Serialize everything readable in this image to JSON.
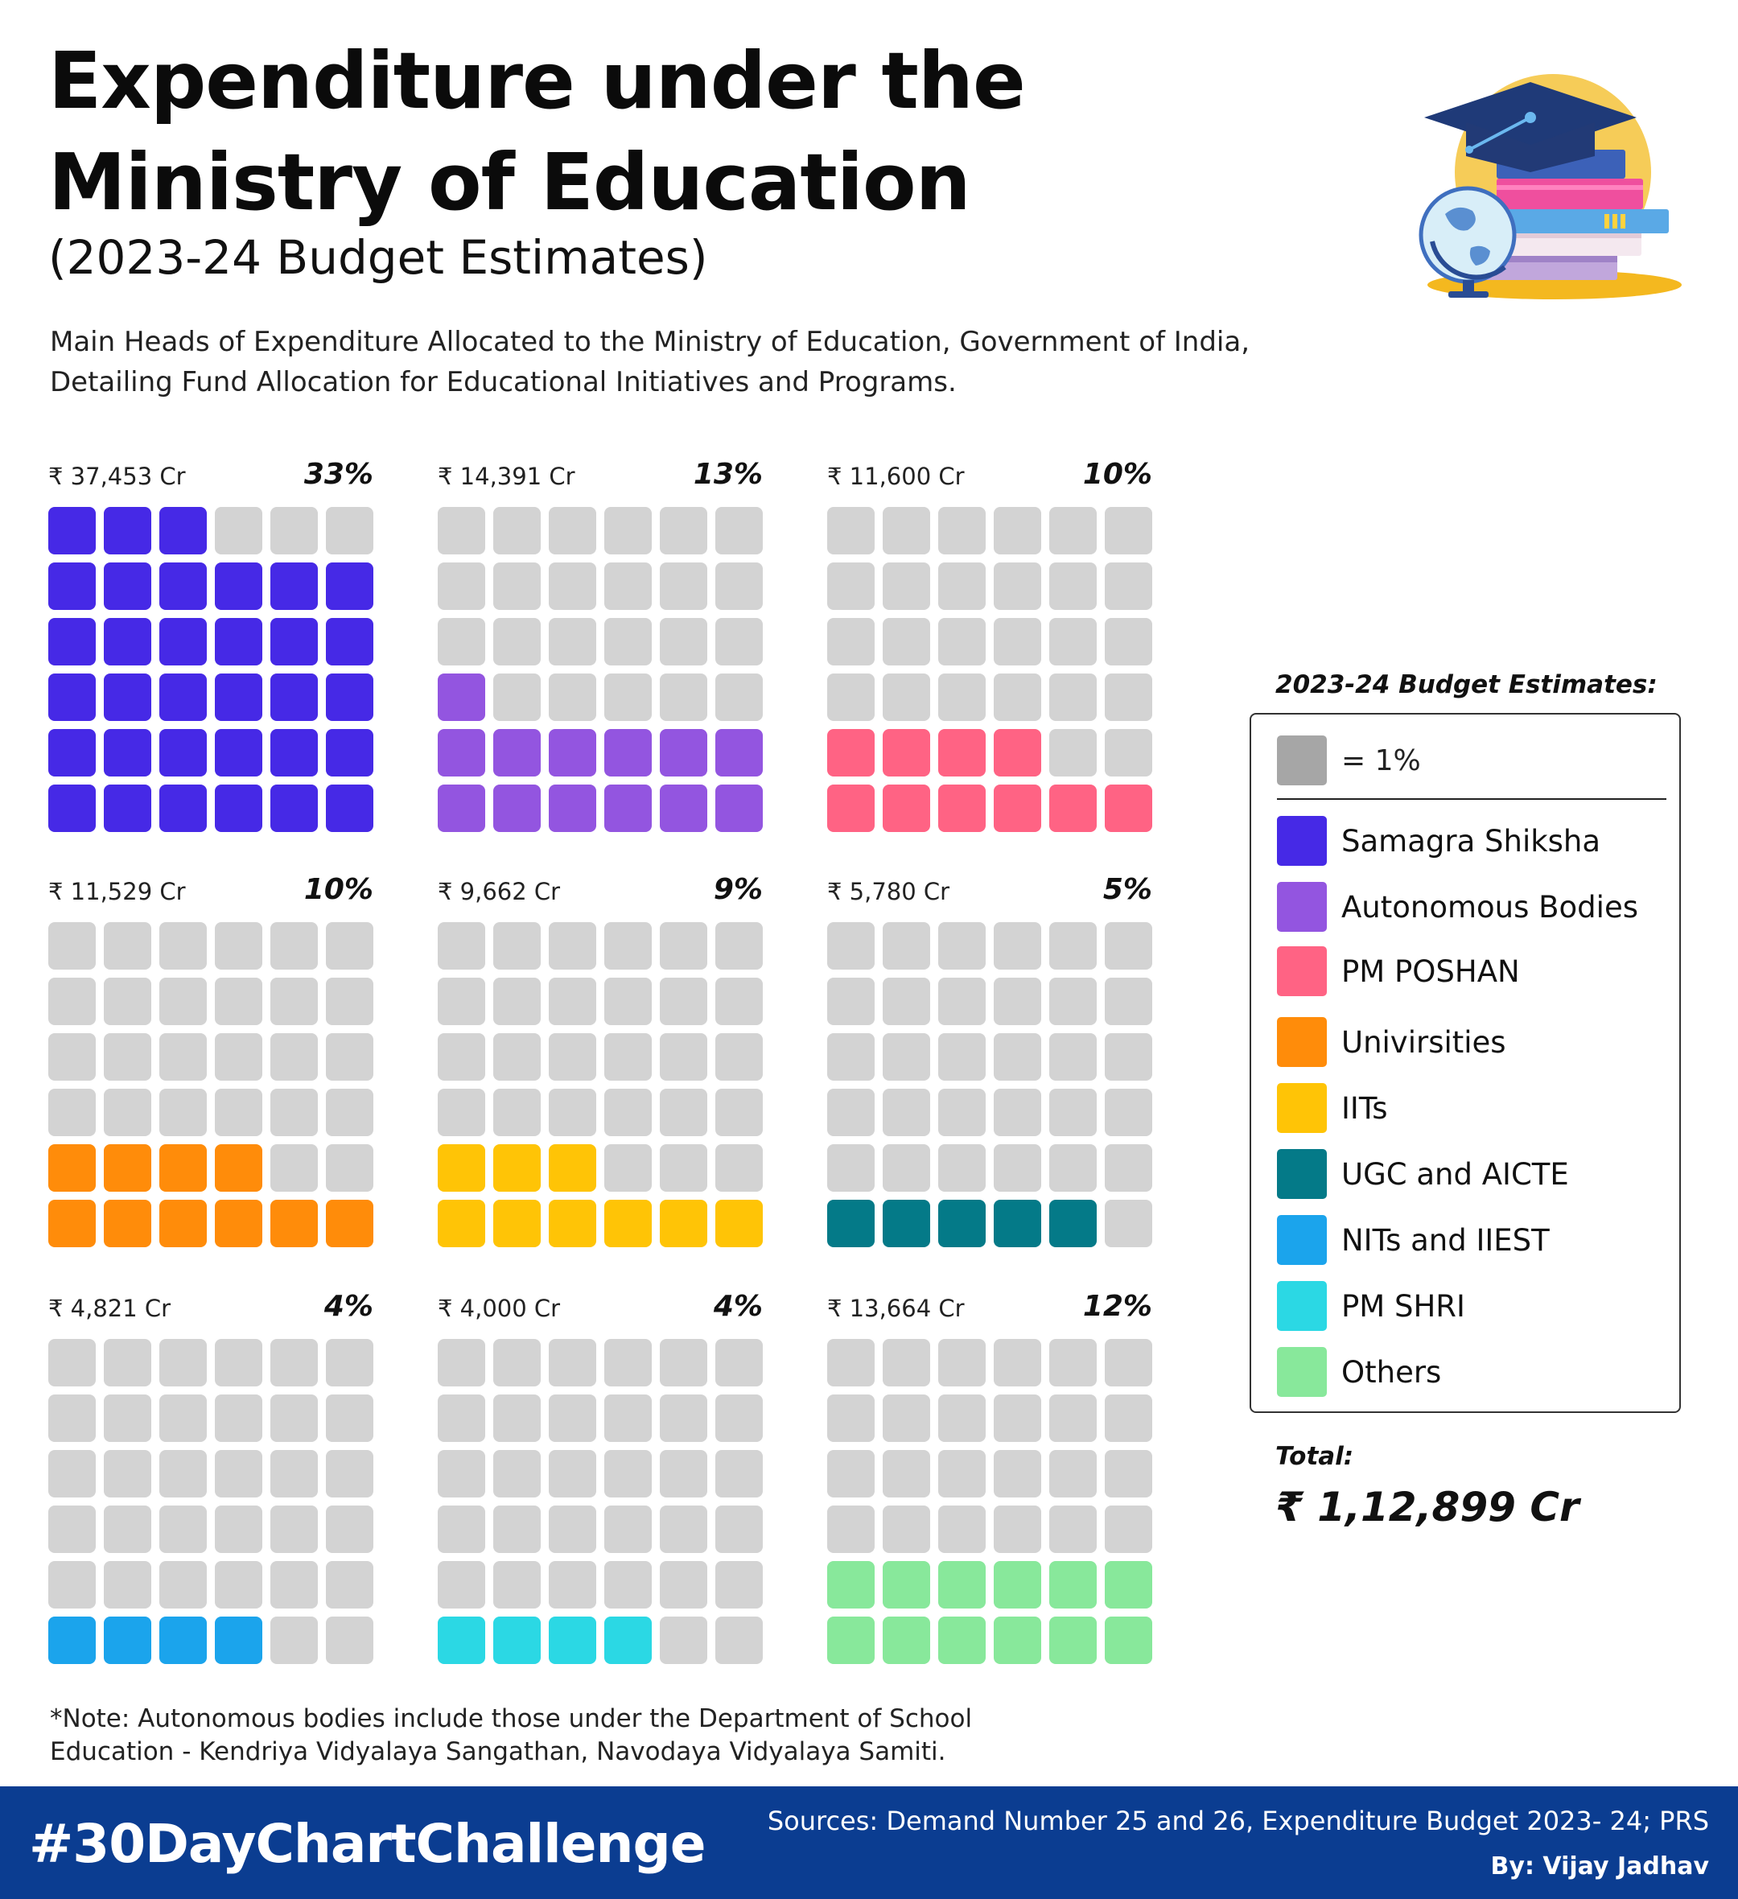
{
  "header": {
    "title_line1": "Expenditure under the",
    "title_line2": "Ministry of Education",
    "subtitle": "(2023-24 Budget Estimates)",
    "description_line1": "Main Heads of Expenditure Allocated to the Ministry of Education, Government of India,",
    "description_line2": "Detailing Fund Allocation for Educational Initiatives and Programs."
  },
  "illustration": {
    "icon": "graduation-cap-books-globe-icon"
  },
  "chart_data": {
    "type": "waffle",
    "grid": {
      "rows": 6,
      "cols": 6,
      "unit": "1%"
    },
    "empty_color": "#d3d3d3",
    "categories": [
      {
        "name": "Samagra Shiksha",
        "amount": "₹ 37,453 Cr",
        "percent": 33,
        "percent_label": "33%",
        "color": "#4629e6"
      },
      {
        "name": "Autonomous Bodies",
        "amount": "₹ 14,391 Cr",
        "percent": 13,
        "percent_label": "13%",
        "color": "#9355e0"
      },
      {
        "name": "PM POSHAN",
        "amount": "₹ 11,600 Cr",
        "percent": 10,
        "percent_label": "10%",
        "color": "#ff6384"
      },
      {
        "name": "Univirsities",
        "amount": "₹ 11,529 Cr",
        "percent": 10,
        "percent_label": "10%",
        "color": "#ff8c0a"
      },
      {
        "name": "IITs",
        "amount": "₹ 9,662 Cr",
        "percent": 9,
        "percent_label": "9%",
        "color": "#ffc406"
      },
      {
        "name": "UGC and AICTE",
        "amount": "₹ 5,780 Cr",
        "percent": 5,
        "percent_label": "5%",
        "color": "#047a88"
      },
      {
        "name": "NITs and IIEST",
        "amount": "₹ 4,821 Cr",
        "percent": 4,
        "percent_label": "4%",
        "color": "#1ba4ec"
      },
      {
        "name": "PM SHRI",
        "amount": "₹ 4,000 Cr",
        "percent": 4,
        "percent_label": "4%",
        "color": "#2bd8e4"
      },
      {
        "name": "Others",
        "amount": "₹ 13,664 Cr",
        "percent": 12,
        "percent_label": "12%",
        "color": "#88e89b"
      }
    ]
  },
  "legend": {
    "title": "2023-24 Budget Estimates:",
    "unit_label": "= 1%",
    "unit_color": "#a6a6a6"
  },
  "total": {
    "label": "Total:",
    "value": "₹ 1,12,899 Cr"
  },
  "note": {
    "line1": "*Note: Autonomous bodies include those under the Department of School",
    "line2": "Education - Kendriya Vidyalaya Sangathan, Navodaya Vidyalaya Samiti."
  },
  "footer": {
    "hashtag": "#30DayChartChallenge",
    "sources": "Sources: Demand Number 25 and 26, Expenditure Budget 2023- 24; PRS",
    "byline": "By: Vijay Jadhav",
    "background": "#0b3d91"
  }
}
